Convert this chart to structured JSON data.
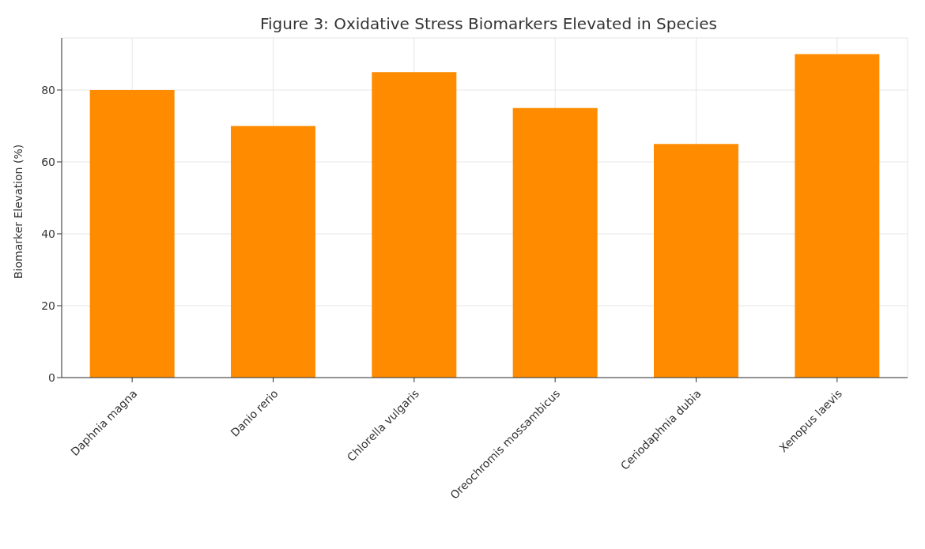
{
  "chart_data": {
    "type": "bar",
    "title": "Figure 3: Oxidative Stress Biomarkers Elevated in Species",
    "ylabel": "Biomarker Elevation (%)",
    "categories": [
      "Daphnia magna",
      "Danio rerio",
      "Chlorella vulgaris",
      "Oreochromis mossambicus",
      "Ceriodaphnia dubia",
      "Xenopus laevis"
    ],
    "values": [
      80,
      70,
      85,
      75,
      65,
      90
    ],
    "color": "#ff8c00",
    "ylim": [
      0,
      94.5
    ],
    "yticks": [
      0,
      20,
      40,
      60,
      80
    ],
    "grid": true
  }
}
